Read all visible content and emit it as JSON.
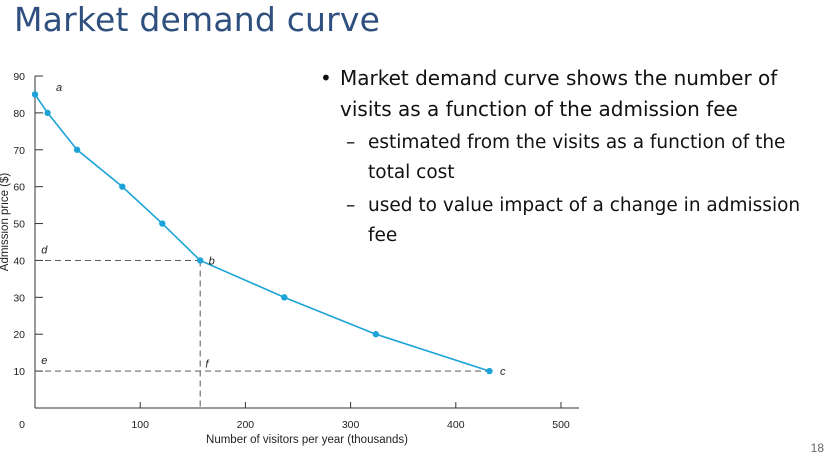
{
  "slide": {
    "title": "Market demand curve",
    "page_number": "18",
    "bullet_main": "Market demand curve shows the number of visits as a function of the admission fee",
    "sub_bullets": [
      "estimated from the visits as a function of the total cost",
      "used to value impact of a change in admission fee"
    ]
  },
  "chart_data": {
    "type": "line",
    "xlabel": "Number of visitors per year (thousands)",
    "ylabel": "Admission price ($)",
    "xlim": [
      0,
      500
    ],
    "ylim": [
      0,
      90
    ],
    "x_ticks": [
      0,
      100,
      200,
      300,
      400,
      500
    ],
    "y_ticks": [
      10,
      20,
      30,
      40,
      50,
      60,
      70,
      80,
      90
    ],
    "line_color": "#1ea3d8",
    "series": [
      {
        "points": [
          {
            "x": 0,
            "y": 85
          },
          {
            "x": 12,
            "y": 80
          },
          {
            "x": 40,
            "y": 70
          },
          {
            "x": 83,
            "y": 60
          },
          {
            "x": 121,
            "y": 50
          },
          {
            "x": 157,
            "y": 40
          },
          {
            "x": 237,
            "y": 30
          },
          {
            "x": 324,
            "y": 20
          },
          {
            "x": 432,
            "y": 10
          }
        ]
      }
    ],
    "reference_lines": [
      {
        "type": "horizontal",
        "y": 40,
        "x_end": 157
      },
      {
        "type": "vertical",
        "x": 157,
        "y_from": 40,
        "y_to": 0
      },
      {
        "type": "horizontal",
        "y": 10,
        "x_end": 432
      }
    ],
    "annotations": [
      {
        "text": "a",
        "x": 20,
        "y": 87
      },
      {
        "text": "b",
        "x": 165,
        "y": 40
      },
      {
        "text": "c",
        "x": 442,
        "y": 10
      },
      {
        "text": "d",
        "x": 6,
        "y": 43
      },
      {
        "text": "e",
        "x": 6,
        "y": 13
      },
      {
        "text": "f",
        "x": 162,
        "y": 12
      }
    ]
  }
}
